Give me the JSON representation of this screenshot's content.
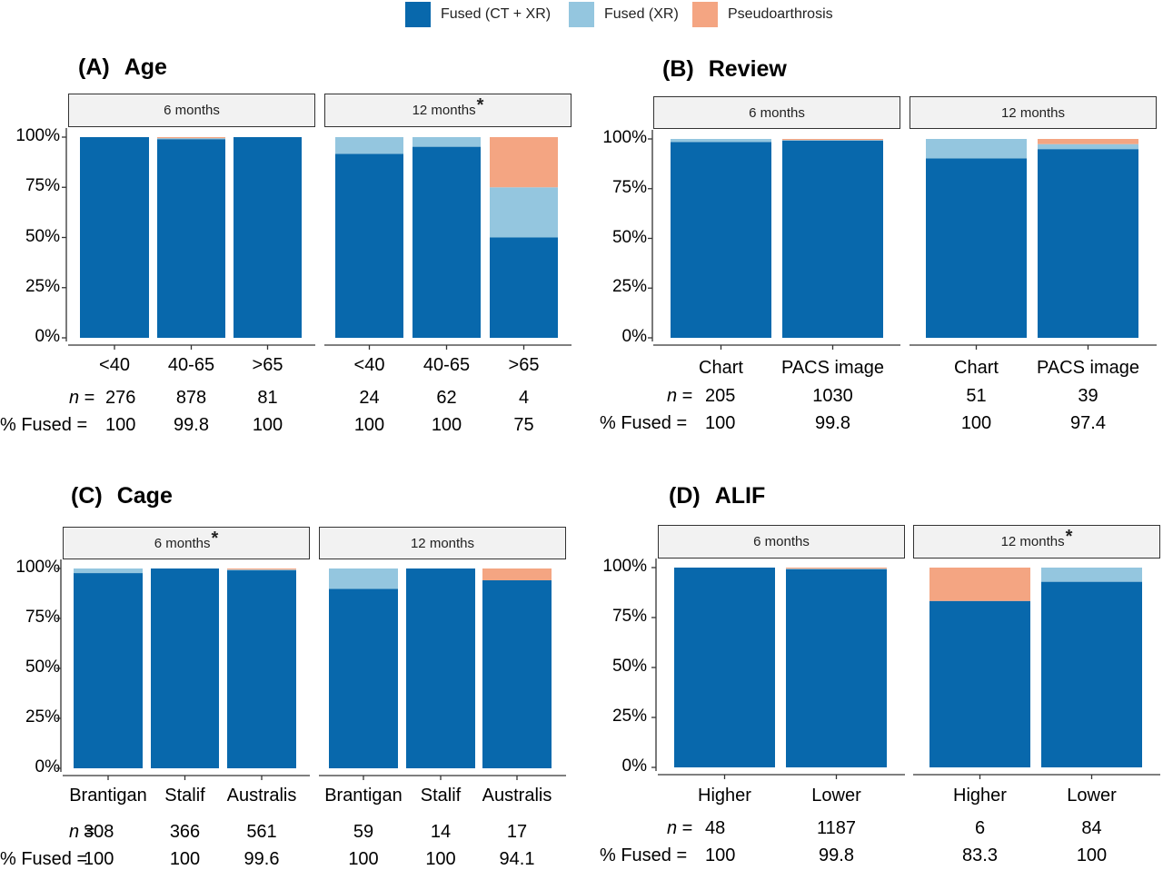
{
  "legend": [
    {
      "name": "Fused (CT + XR)",
      "color": "#0868ac"
    },
    {
      "name": "Fused (XR)",
      "color": "#94c6df"
    },
    {
      "name": "Pseudoarthrosis",
      "color": "#f4a582"
    }
  ],
  "row_labels": {
    "n": "n",
    "n_eq": " = ",
    "fused": "% Fused",
    "fused_eq": " = "
  },
  "yticks": [
    "0%",
    "25%",
    "50%",
    "75%",
    "100%"
  ],
  "chart_data": [
    {
      "type": "bar",
      "stacked": true,
      "label": "(A)",
      "title": "Age",
      "ylim": [
        0,
        100
      ],
      "facets": [
        {
          "strip": "6 months",
          "significant": false,
          "categories": [
            "<40",
            "40-65",
            ">65"
          ],
          "series": [
            {
              "name": "Fused (CT + XR)",
              "values": [
                100,
                99,
                100
              ]
            },
            {
              "name": "Fused (XR)",
              "values": [
                0,
                0.8,
                0
              ]
            },
            {
              "name": "Pseudoarthrosis",
              "values": [
                0,
                0.2,
                0
              ]
            }
          ],
          "n": [
            "276",
            "878",
            "81"
          ],
          "fused": [
            "100",
            "99.8",
            "100"
          ]
        },
        {
          "strip": "12 months",
          "significant": true,
          "categories": [
            "<40",
            "40-65",
            ">65"
          ],
          "series": [
            {
              "name": "Fused (CT + XR)",
              "values": [
                91.7,
                95.2,
                50
              ]
            },
            {
              "name": "Fused (XR)",
              "values": [
                8.3,
                4.8,
                25
              ]
            },
            {
              "name": "Pseudoarthrosis",
              "values": [
                0,
                0,
                25
              ]
            }
          ],
          "n": [
            "24",
            "62",
            "4"
          ],
          "fused": [
            "100",
            "100",
            "75"
          ]
        }
      ]
    },
    {
      "type": "bar",
      "stacked": true,
      "label": "(B)",
      "title": "Review",
      "ylim": [
        0,
        100
      ],
      "facets": [
        {
          "strip": "6 months",
          "significant": false,
          "categories": [
            "Chart",
            "PACS image"
          ],
          "series": [
            {
              "name": "Fused (CT + XR)",
              "values": [
                98.5,
                99.2
              ]
            },
            {
              "name": "Fused (XR)",
              "values": [
                1.5,
                0.6
              ]
            },
            {
              "name": "Pseudoarthrosis",
              "values": [
                0,
                0.2
              ]
            }
          ],
          "n": [
            "205",
            "1030"
          ],
          "fused": [
            "100",
            "99.8"
          ]
        },
        {
          "strip": "12 months",
          "significant": false,
          "categories": [
            "Chart",
            "PACS image"
          ],
          "series": [
            {
              "name": "Fused (CT + XR)",
              "values": [
                90.2,
                94.9
              ]
            },
            {
              "name": "Fused (XR)",
              "values": [
                9.8,
                2.5
              ]
            },
            {
              "name": "Pseudoarthrosis",
              "values": [
                0,
                2.6
              ]
            }
          ],
          "n": [
            "51",
            "39"
          ],
          "fused": [
            "100",
            "97.4"
          ]
        }
      ]
    },
    {
      "type": "bar",
      "stacked": true,
      "label": "(C)",
      "title": "Cage",
      "ylim": [
        0,
        100
      ],
      "facets": [
        {
          "strip": "6 months",
          "significant": true,
          "categories": [
            "Brantigan",
            "Stalif",
            "Australis"
          ],
          "series": [
            {
              "name": "Fused (CT + XR)",
              "values": [
                97.7,
                100,
                99.3
              ]
            },
            {
              "name": "Fused (XR)",
              "values": [
                2.3,
                0,
                0.3
              ]
            },
            {
              "name": "Pseudoarthrosis",
              "values": [
                0,
                0,
                0.4
              ]
            }
          ],
          "n": [
            "308",
            "366",
            "561"
          ],
          "fused": [
            "100",
            "100",
            "99.6"
          ]
        },
        {
          "strip": "12 months",
          "significant": false,
          "categories": [
            "Brantigan",
            "Stalif",
            "Australis"
          ],
          "series": [
            {
              "name": "Fused (CT + XR)",
              "values": [
                89.8,
                100,
                94.1
              ]
            },
            {
              "name": "Fused (XR)",
              "values": [
                10.2,
                0,
                0
              ]
            },
            {
              "name": "Pseudoarthrosis",
              "values": [
                0,
                0,
                5.9
              ]
            }
          ],
          "n": [
            "59",
            "14",
            "17"
          ],
          "fused": [
            "100",
            "100",
            "94.1"
          ]
        }
      ]
    },
    {
      "type": "bar",
      "stacked": true,
      "label": "(D)",
      "title": "ALIF",
      "ylim": [
        0,
        100
      ],
      "facets": [
        {
          "strip": "6 months",
          "significant": false,
          "categories": [
            "Higher",
            "Lower"
          ],
          "series": [
            {
              "name": "Fused (CT + XR)",
              "values": [
                100,
                99.2
              ]
            },
            {
              "name": "Fused (XR)",
              "values": [
                0,
                0.6
              ]
            },
            {
              "name": "Pseudoarthrosis",
              "values": [
                0,
                0.2
              ]
            }
          ],
          "n": [
            "48",
            "1187"
          ],
          "fused": [
            "100",
            "99.8"
          ]
        },
        {
          "strip": "12 months",
          "significant": true,
          "categories": [
            "Higher",
            "Lower"
          ],
          "series": [
            {
              "name": "Fused (CT + XR)",
              "values": [
                83.3,
                92.9
              ]
            },
            {
              "name": "Fused (XR)",
              "values": [
                0,
                7.1
              ]
            },
            {
              "name": "Pseudoarthrosis",
              "values": [
                16.7,
                0
              ]
            }
          ],
          "n": [
            "6",
            "84"
          ],
          "fused": [
            "83.3",
            "100"
          ]
        }
      ]
    }
  ]
}
